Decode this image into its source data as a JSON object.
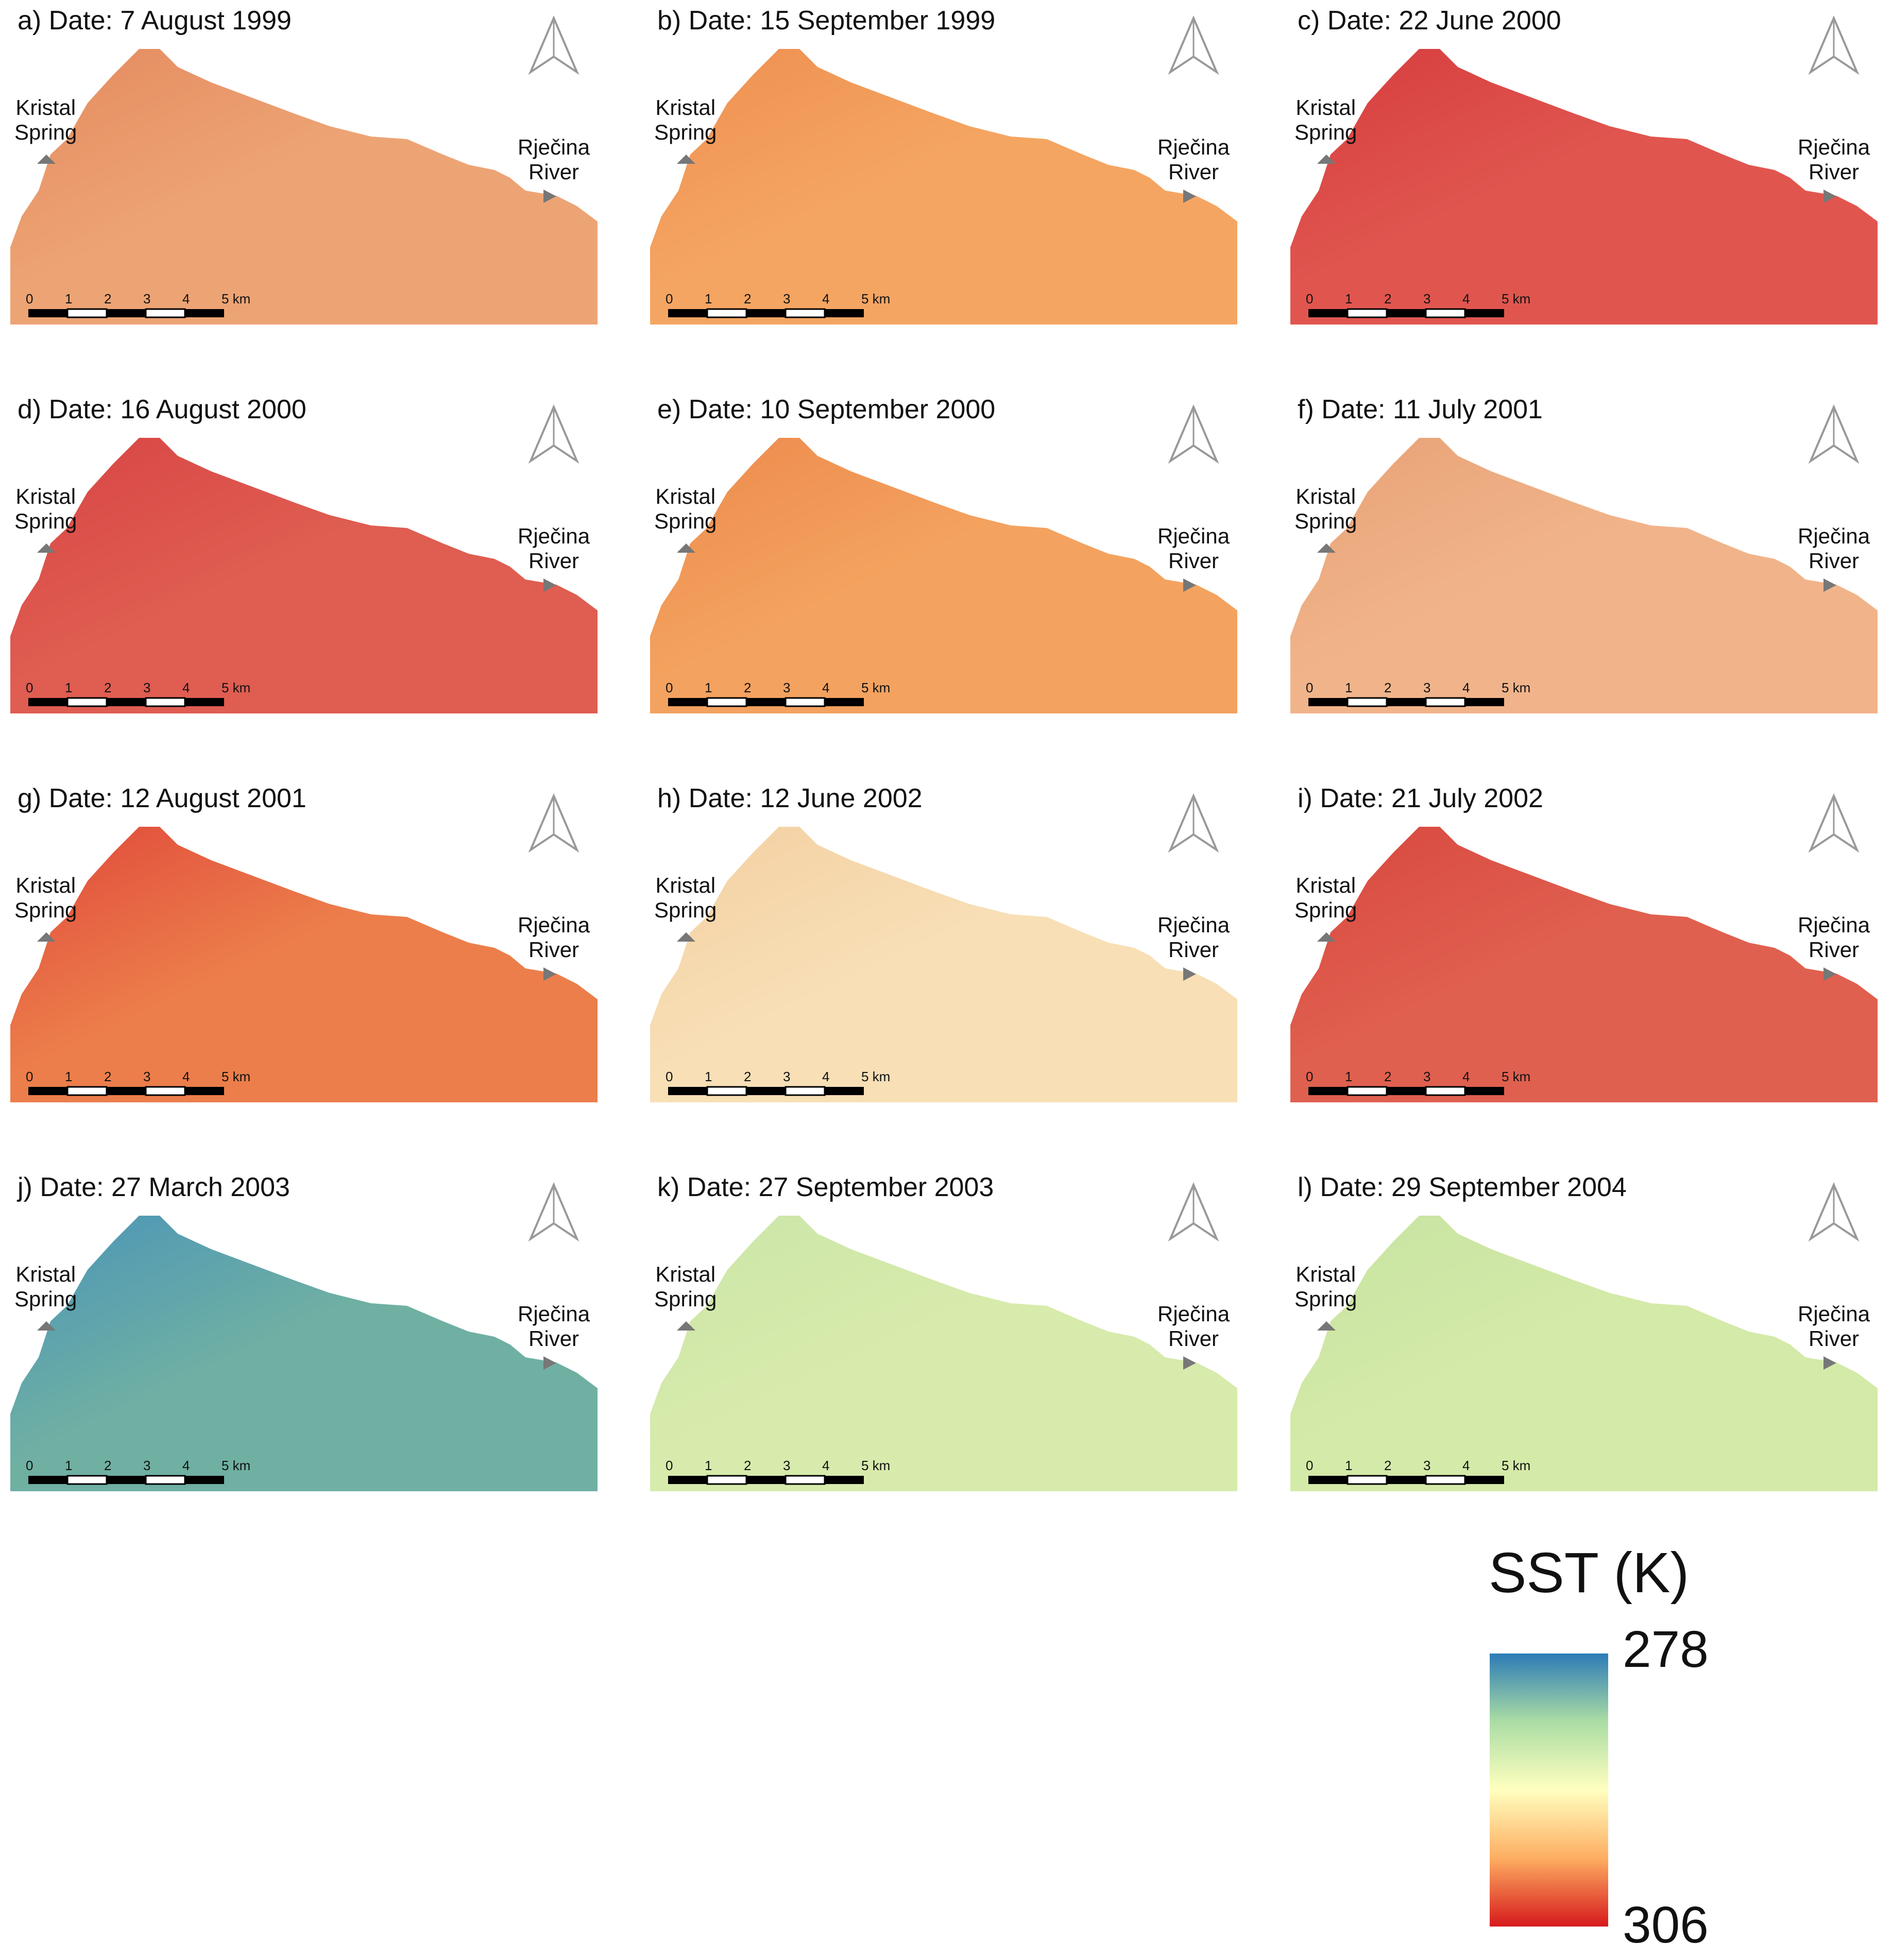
{
  "panels": [
    {
      "title": "a) Date: 7 August 1999",
      "fill": "#eda474",
      "shore": "#e48a5f"
    },
    {
      "title": "b) Date: 15 September 1999",
      "fill": "#f5a562",
      "shore": "#ee8f50"
    },
    {
      "title": "c) Date: 22 June 2000",
      "fill": "#e0564f",
      "shore": "#d63c3e"
    },
    {
      "title": "d) Date: 16 August 2000",
      "fill": "#df5d51",
      "shore": "#d84444"
    },
    {
      "title": "e) Date: 10 September 2000",
      "fill": "#f4a25f",
      "shore": "#ec8a4c"
    },
    {
      "title": "f) Date: 11 July 2001",
      "fill": "#f1b48a",
      "shore": "#e8a176"
    },
    {
      "title": "g) Date: 12 August 2001",
      "fill": "#ec7e4b",
      "shore": "#e0483a"
    },
    {
      "title": "h) Date: 12 June 2002",
      "fill": "#f8dfb6",
      "shore": "#f3cfa1"
    },
    {
      "title": "i) Date: 21 July 2002",
      "fill": "#e0604f",
      "shore": "#d8473f"
    },
    {
      "title": "j) Date: 27 March 2003",
      "fill": "#6fb0a3",
      "shore": "#4a94b8"
    },
    {
      "title": "k) Date: 27 September 2003",
      "fill": "#d7ebac",
      "shore": "#cbe5a8"
    },
    {
      "title": "l) Date: 29 September 2004",
      "fill": "#d4eaa8",
      "shore": "#c7e3a2"
    }
  ],
  "labels": {
    "kristal_line1": "Kristal",
    "kristal_line2": "Spring",
    "rjecina_line1": "Rječina",
    "rjecina_line2": "River"
  },
  "scale_bar": {
    "ticks": [
      "0",
      "1",
      "2",
      "3",
      "4"
    ],
    "end_label": "5 km"
  },
  "legend": {
    "title": "SST (K)",
    "min_label": "278",
    "max_label": "306",
    "colors": [
      "#2c7bb6",
      "#abdda4",
      "#ffffbf",
      "#fdae61",
      "#d7191c"
    ]
  }
}
